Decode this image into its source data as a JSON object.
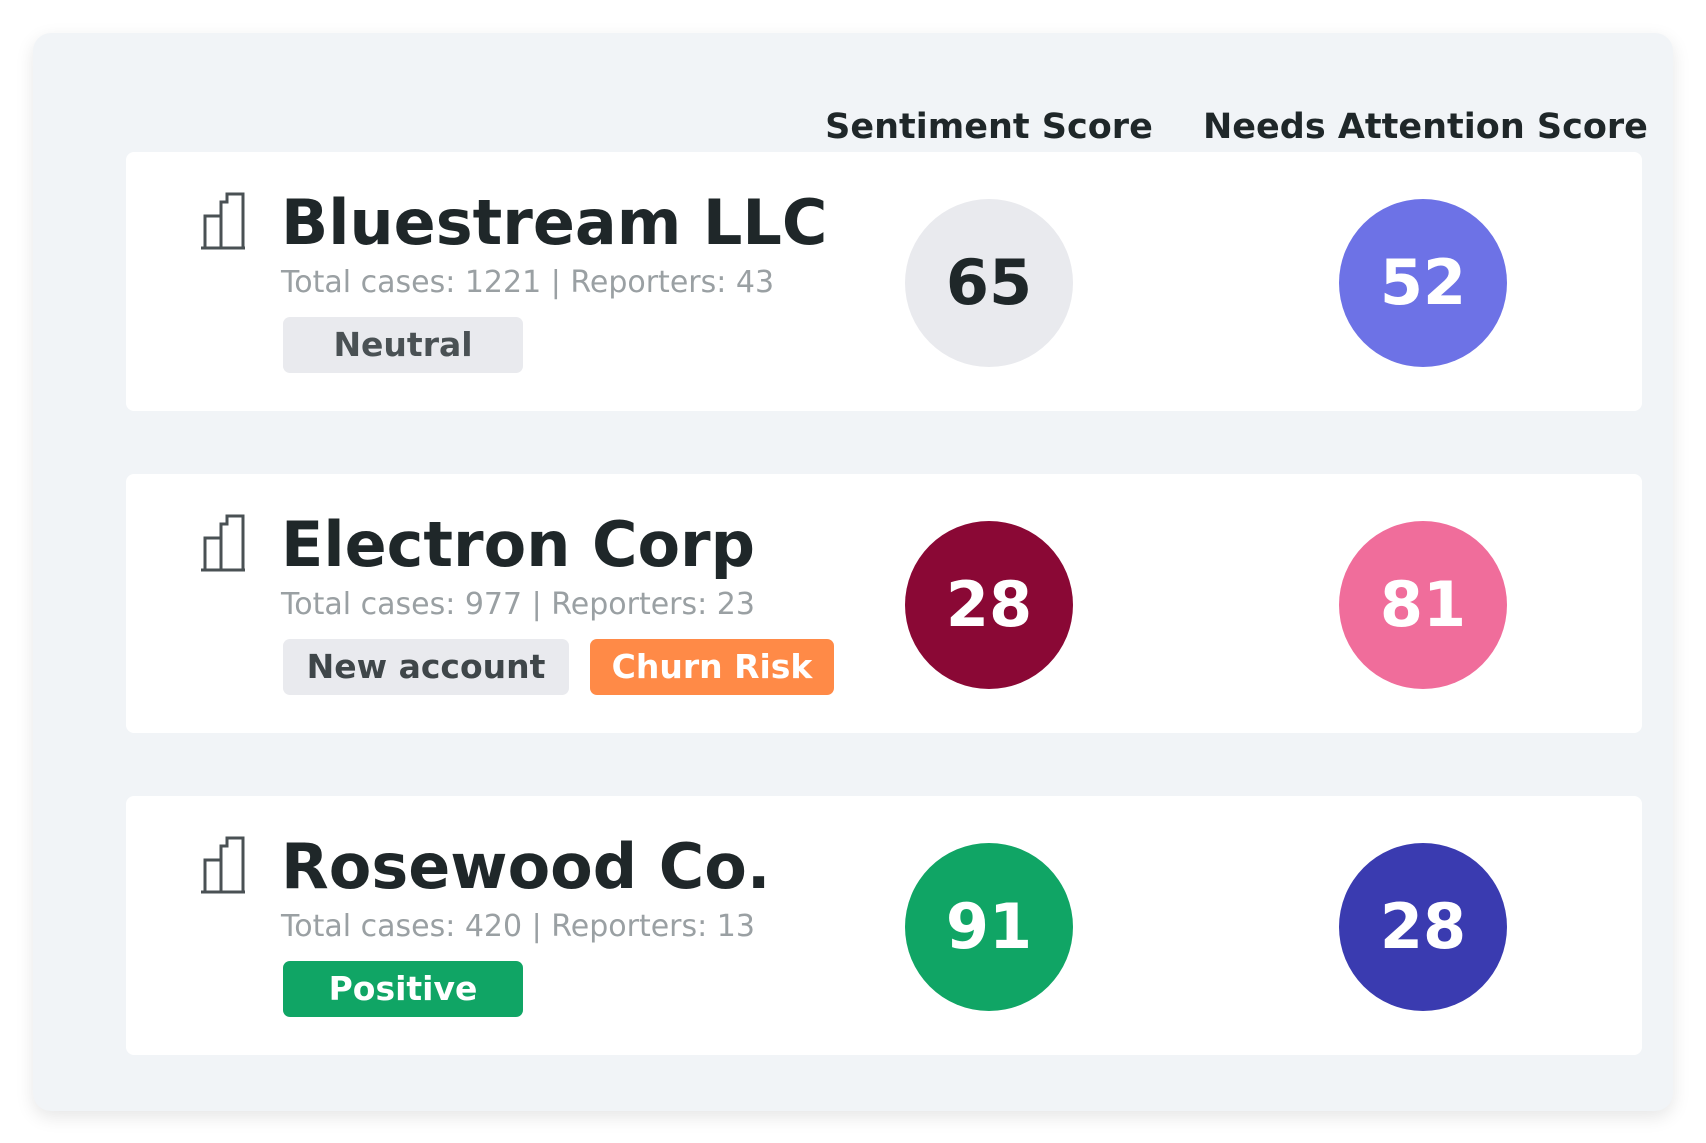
{
  "headers": {
    "sentiment": "Sentiment Score",
    "attention": "Needs Attention Score"
  },
  "companies": [
    {
      "name": "Bluestream LLC",
      "stats": "Total cases: 1221 | Reporters: 43",
      "tags": [
        "Neutral"
      ],
      "sentiment_score": "65",
      "attention_score": "52",
      "colors": {
        "sentiment_bg": "#e9eaee",
        "sentiment_fg": "#1f2729",
        "attention_bg": "#6d72e6",
        "attention_fg": "#ffffff"
      }
    },
    {
      "name": "Electron Corp",
      "stats": "Total cases: 977 | Reporters: 23",
      "tags": [
        "New account",
        "Churn Risk"
      ],
      "sentiment_score": "28",
      "attention_score": "81",
      "colors": {
        "sentiment_bg": "#8a0835",
        "sentiment_fg": "#ffffff",
        "attention_bg": "#f06d9b",
        "attention_fg": "#ffffff"
      }
    },
    {
      "name": "Rosewood Co.",
      "stats": "Total cases: 420 | Reporters: 13",
      "tags": [
        "Positive"
      ],
      "sentiment_score": "91",
      "attention_score": "28",
      "colors": {
        "sentiment_bg": "#10a565",
        "sentiment_fg": "#ffffff",
        "attention_bg": "#3a3bb0",
        "attention_fg": "#ffffff"
      }
    }
  ],
  "icons": {
    "company": "building-icon"
  }
}
